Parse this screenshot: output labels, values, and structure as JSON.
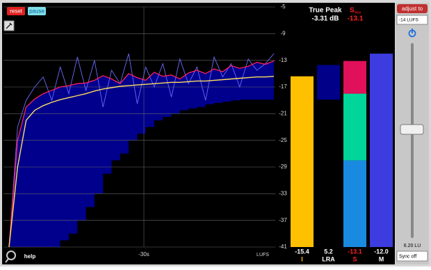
{
  "controls": {
    "reset": "reset",
    "pause": "pause",
    "help": "help",
    "adjust_to": "adjust to",
    "target": "-14 LUFS",
    "gain": "6.20 LU",
    "sync": "Sync off"
  },
  "true_peak": {
    "label": "True Peak",
    "value": "-3.31 dB"
  },
  "s_max": {
    "label": "S",
    "sub": "Max",
    "value": "-13.1"
  },
  "scale": {
    "lim": [
      -41,
      -5
    ],
    "ticks": [
      -5,
      -9,
      -13,
      -17,
      -21,
      -25,
      -29,
      -33,
      -37,
      -41
    ],
    "unit": "LUFS",
    "time_label": "-30s"
  },
  "history": {
    "integrated": [
      -41,
      -29,
      -22,
      -20.5,
      -19.8,
      -19.3,
      -18.9,
      -18.6,
      -18.3,
      -18.0,
      -17.6,
      -17.3,
      -17.1,
      -16.9,
      -16.8,
      -16.7,
      -16.6,
      -16.5,
      -16.4,
      -16.3,
      -16.3,
      -16.2,
      -16.1,
      -16.1,
      -16.0,
      -15.9,
      -15.8,
      -15.7,
      -15.6,
      -15.5,
      -15.5,
      -15.4
    ],
    "short_term": [
      -41,
      -25,
      -20,
      -18.8,
      -18,
      -17.5,
      -17,
      -16.8,
      -16.5,
      -16.4,
      -16,
      -15.3,
      -15.8,
      -16.5,
      -15,
      -15.6,
      -16,
      -14.8,
      -15.4,
      -15.2,
      -15.8,
      -14.9,
      -14.5,
      -15,
      -14.3,
      -14.7,
      -13.8,
      -14.2,
      -13.9,
      -13.3,
      -13.6,
      -13.1
    ],
    "momentary": [
      -41,
      -23,
      -19,
      -17,
      -15.5,
      -19,
      -14,
      -18,
      -12.5,
      -17.5,
      -13,
      -20,
      -14.5,
      -16.5,
      -12,
      -19.5,
      -14,
      -17,
      -13.5,
      -18.5,
      -12.8,
      -16.5,
      -14,
      -19,
      -12.5,
      -15.5,
      -13.5,
      -17,
      -12.8,
      -14.5,
      -13.5,
      -12.0
    ],
    "range_bottom": [
      -41,
      -41,
      -41,
      -41,
      -41,
      -41,
      -41,
      -40,
      -39,
      -37,
      -35,
      -33,
      -30,
      -28,
      -27,
      -25,
      -24,
      -23,
      -22,
      -21.5,
      -21,
      -20.5,
      -20.2,
      -20,
      -19.6,
      -19.4,
      -19.2,
      -19,
      -18.9,
      -18.9,
      -18.9,
      -18.9
    ]
  },
  "meters": [
    {
      "name": "I",
      "value": -15.4,
      "value_label": "-15.4",
      "color": "#ffc000",
      "name_color": "#ffc000",
      "value_color": "#ffffff"
    },
    {
      "name": "LRA",
      "value": 5.2,
      "value_label": "5.2",
      "range": [
        -18.9,
        -13.7
      ],
      "color": "#000088",
      "name_color": "#ffffff",
      "value_color": "#ffffff"
    },
    {
      "name": "S",
      "value": -13.1,
      "value_label": "-13.1",
      "zones": [
        {
          "top": -28,
          "color": "#1a8ae0"
        },
        {
          "top": -18,
          "color": "#00d69a"
        },
        {
          "top": -13.1,
          "color": "#e0105a"
        }
      ],
      "name_color": "#ff2020",
      "value_color": "#ff2020"
    },
    {
      "name": "M",
      "value": -12.0,
      "value_label": "-12.0",
      "color": "#3c3ce0",
      "name_color": "#ffffff",
      "value_color": "#ffffff"
    }
  ]
}
